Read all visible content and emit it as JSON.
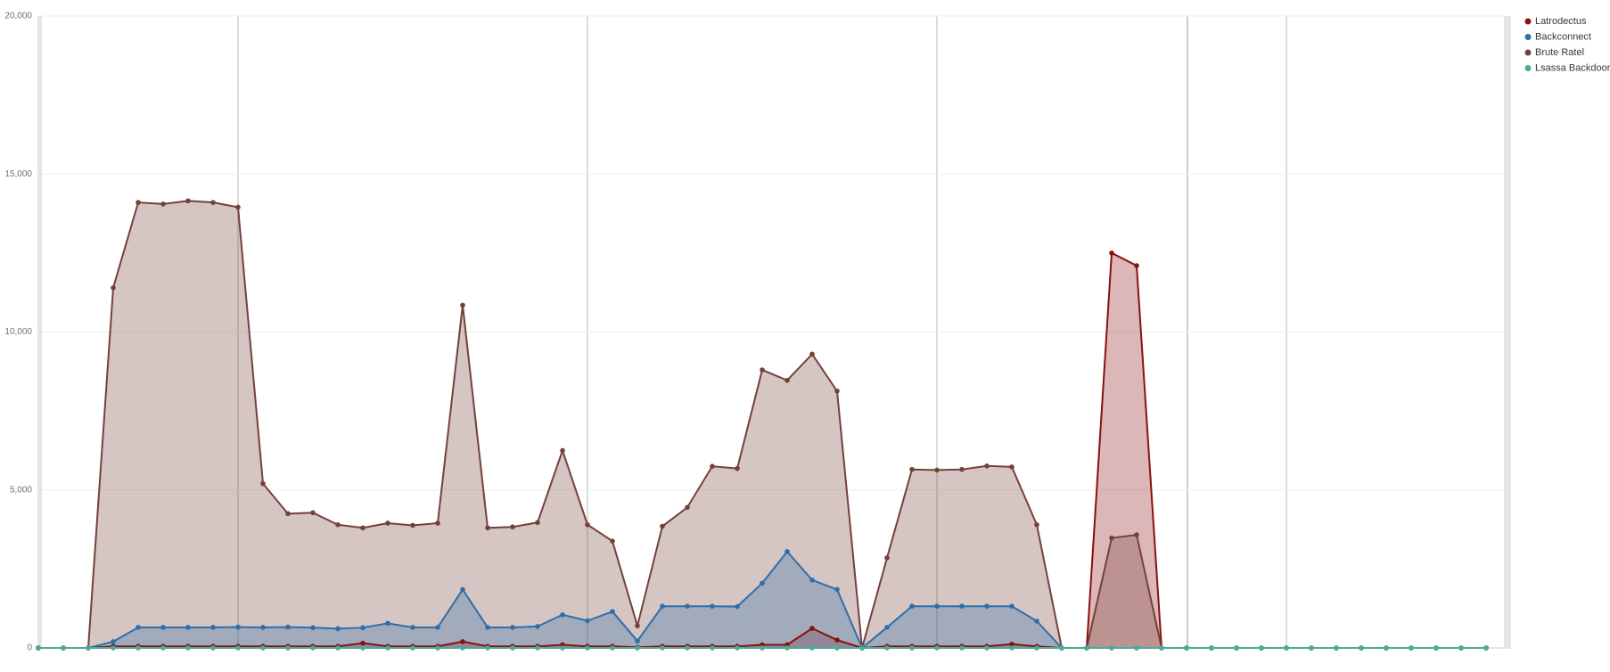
{
  "chart_data": {
    "type": "area",
    "categories": [
      null,
      null,
      null,
      null,
      null,
      null,
      null,
      null,
      null,
      null,
      null,
      null,
      null,
      null,
      null,
      null,
      null,
      null,
      null,
      null,
      null,
      null,
      null,
      null,
      null,
      null,
      null,
      null,
      null,
      null,
      null,
      null,
      null,
      null,
      null,
      null,
      null,
      null,
      null,
      null,
      null,
      null,
      null,
      null,
      null,
      null,
      null,
      null,
      null,
      null,
      null,
      null,
      null,
      null,
      null,
      null,
      null,
      null,
      null
    ],
    "series": [
      {
        "name": "Latrodectus",
        "color": "#8b0f0f",
        "values": [
          0,
          0,
          0,
          50,
          50,
          50,
          50,
          50,
          50,
          50,
          50,
          50,
          50,
          150,
          50,
          50,
          50,
          200,
          50,
          50,
          50,
          100,
          50,
          50,
          20,
          50,
          50,
          50,
          50,
          100,
          100,
          620,
          250,
          0,
          50,
          50,
          50,
          50,
          50,
          120,
          50,
          0,
          0,
          12500,
          12100,
          0,
          0,
          0,
          0,
          0,
          0,
          0,
          0,
          0,
          0,
          0,
          0,
          0,
          0
        ]
      },
      {
        "name": "Backconnect",
        "color": "#2f6ea8",
        "values": [
          0,
          0,
          0,
          200,
          650,
          650,
          650,
          650,
          660,
          650,
          660,
          640,
          610,
          640,
          780,
          650,
          650,
          1850,
          650,
          650,
          680,
          1050,
          860,
          1150,
          220,
          1320,
          1320,
          1320,
          1310,
          2050,
          3050,
          2150,
          1850,
          0,
          650,
          1320,
          1320,
          1320,
          1320,
          1320,
          850,
          0,
          0,
          0,
          0,
          0,
          0,
          0,
          0,
          0,
          0,
          0,
          0,
          0,
          0,
          0,
          0,
          0,
          0
        ]
      },
      {
        "name": "Brute Ratel",
        "color": "#74413a",
        "values": [
          0,
          0,
          0,
          11400,
          14100,
          14050,
          14150,
          14100,
          13950,
          5200,
          4250,
          4280,
          3900,
          3800,
          3950,
          3880,
          3950,
          10850,
          3800,
          3830,
          3970,
          6250,
          3900,
          3380,
          700,
          3850,
          4450,
          5750,
          5680,
          8800,
          8470,
          9300,
          8130,
          0,
          2850,
          5650,
          5630,
          5650,
          5760,
          5730,
          3900,
          0,
          0,
          3480,
          3580,
          0,
          0,
          0,
          0,
          0,
          0,
          0,
          0,
          0,
          0,
          0,
          0,
          0,
          0
        ]
      },
      {
        "name": "Lsassa Backdoor",
        "color": "#4bab97",
        "values": [
          0,
          0,
          0,
          0,
          0,
          0,
          0,
          0,
          0,
          0,
          0,
          0,
          0,
          0,
          0,
          0,
          0,
          0,
          0,
          0,
          0,
          0,
          0,
          0,
          0,
          0,
          0,
          0,
          0,
          0,
          0,
          0,
          0,
          0,
          0,
          0,
          0,
          0,
          0,
          0,
          0,
          0,
          0,
          0,
          0,
          0,
          0,
          0,
          0,
          0,
          0,
          0,
          0,
          0,
          0,
          0,
          0,
          0,
          0
        ]
      }
    ],
    "ylim": [
      0,
      20000
    ],
    "yticks": [
      0,
      {
        "value": 5000,
        "label": "5,000"
      },
      {
        "value": 10000,
        "label": "10,000"
      },
      {
        "value": 15000,
        "label": "15,000"
      },
      {
        "value": 20000,
        "label": "20,000"
      }
    ],
    "grid": true
  }
}
